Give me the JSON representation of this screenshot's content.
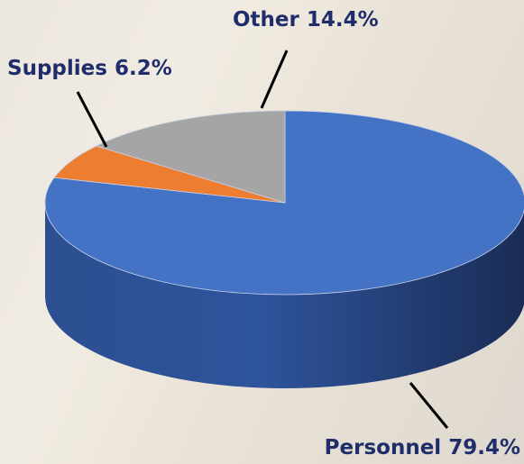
{
  "chart_data": {
    "type": "pie3d",
    "categories": [
      "Personnel",
      "Supplies",
      "Other"
    ],
    "values": [
      79.4,
      6.2,
      14.4
    ],
    "value_labels": [
      "79.4%",
      "6.2%",
      "14.4%"
    ],
    "colors": [
      "#4472c4",
      "#ed7d31",
      "#a5a5a5"
    ]
  }
}
